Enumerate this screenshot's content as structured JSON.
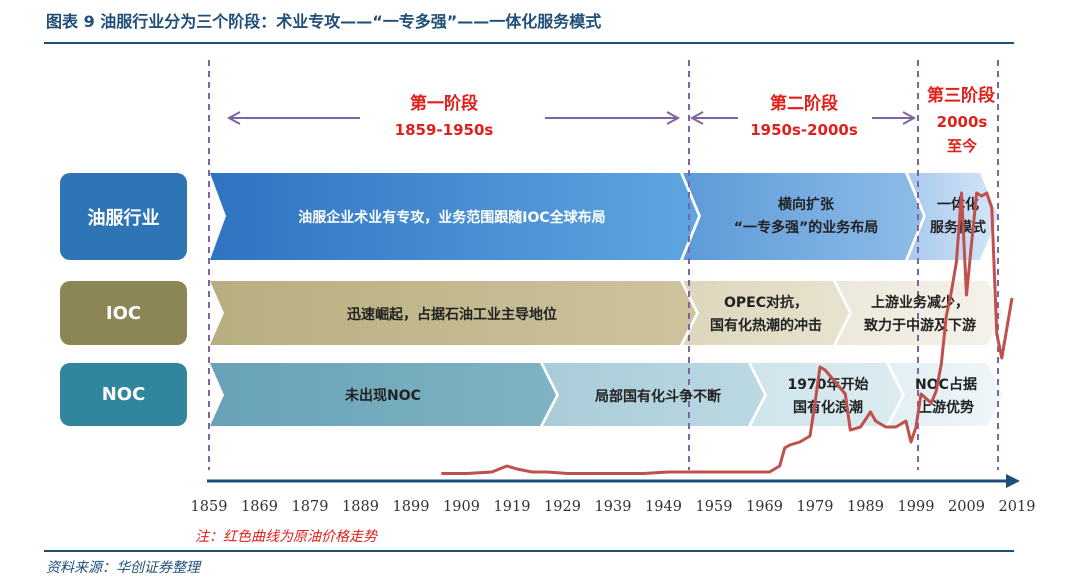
{
  "header": {
    "title": "图表 9 油服行业分为三个阶段：术业专攻——“一专多强”——一体化服务模式"
  },
  "stages": [
    {
      "name": "第一阶段",
      "period": "1859-1950s"
    },
    {
      "name": "第二阶段",
      "period": "1950s-2000s"
    },
    {
      "name": "第三阶段",
      "period_line1": "2000s",
      "period_line2": "至今"
    }
  ],
  "rows": [
    {
      "label": "油服行业",
      "segments": [
        {
          "line1": "油服企业术业有专攻，业务范围跟随IOC全球布局"
        },
        {
          "line1": "横向扩张",
          "line2": "“一专多强”的业务布局"
        },
        {
          "line1": "一体化",
          "line2": "服务模式"
        }
      ]
    },
    {
      "label": "IOC",
      "segments": [
        {
          "line1": "迅速崛起，占据石油工业主导地位"
        },
        {
          "line1": "OPEC对抗，",
          "line2": "国有化热潮的冲击"
        },
        {
          "line1": "上游业务减少，",
          "line2": "致力于中游及下游"
        }
      ]
    },
    {
      "label": "NOC",
      "segments": [
        {
          "line1": "未出现NOC"
        },
        {
          "line1": "局部国有化斗争不断"
        },
        {
          "line1": "1970年开始",
          "line2": "国有化浪潮"
        },
        {
          "line1": "NOC占据",
          "line2": "上游优势"
        }
      ]
    }
  ],
  "note": "注：红色曲线为原油价格走势",
  "source": "资料来源：华创证券整理",
  "colors": {
    "accent": "#1f4e79",
    "stage_red": "#e0201b",
    "price_line": "#c0504d",
    "arrow_purple": "#8064a2",
    "row1_label": "#2e75b6",
    "row2_label": "#8c8656",
    "row3_label": "#31859c"
  },
  "chart_data": {
    "type": "line",
    "x_ticks": [
      "1859",
      "1869",
      "1879",
      "1889",
      "1899",
      "1909",
      "1919",
      "1929",
      "1939",
      "1949",
      "1959",
      "1969",
      "1979",
      "1989",
      "1999",
      "2009",
      "2019"
    ],
    "xlim": [
      1859,
      2019
    ],
    "ylim": [
      0,
      100
    ],
    "y_axis_shown": false,
    "series": [
      {
        "x": [
          1905,
          1910,
          1915,
          1918,
          1920,
          1923,
          1926,
          1930,
          1935,
          1940,
          1945,
          1950,
          1955,
          1960,
          1965,
          1970,
          1972,
          1973,
          1974,
          1976,
          1978,
          1979,
          1980,
          1981,
          1983,
          1985,
          1986,
          1988,
          1990,
          1991,
          1993,
          1995,
          1997,
          1998,
          1999,
          2000,
          2002,
          2003,
          2004,
          2005,
          2006,
          2007,
          2008,
          2009,
          2010,
          2011,
          2012,
          2013,
          2014,
          2015,
          2016,
          2018
        ],
        "y": [
          1.5,
          1.5,
          2,
          4,
          3,
          2,
          2,
          1.5,
          1.5,
          1.5,
          1.5,
          2,
          2,
          2,
          2,
          2,
          4,
          10,
          11,
          12,
          14,
          25,
          37,
          36,
          32,
          28,
          16,
          17,
          22,
          19,
          17,
          17,
          19,
          12,
          17,
          28,
          25,
          29,
          38,
          54,
          62,
          72,
          95,
          61,
          78,
          95,
          94,
          95,
          90,
          48,
          40,
          60
        ]
      }
    ]
  }
}
